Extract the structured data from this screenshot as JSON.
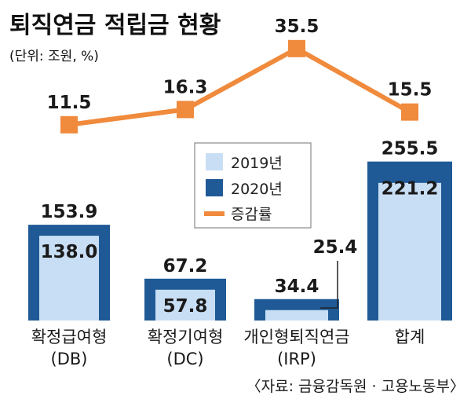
{
  "title": "퇴직연금 적립금 현황",
  "unit": "(단위: 조원, %)",
  "source": "〈자료: 금융감독원 · 고용노동부〉",
  "colors": {
    "y2019": "#c8def4",
    "y2020": "#1f5a96",
    "growth": "#f08a3c"
  },
  "chart_data": {
    "type": "bar",
    "categories": [
      [
        "확정급여형",
        "(DB)"
      ],
      [
        "확정기여형",
        "(DC)"
      ],
      [
        "개인형퇴직연금",
        "(IRP)"
      ],
      [
        "합계"
      ]
    ],
    "series": [
      {
        "name": "2019년",
        "values": [
          138.0,
          57.8,
          null,
          221.2
        ],
        "labels": [
          "138.0",
          "57.8",
          "25.4",
          "221.2"
        ],
        "actual": [
          138.0,
          57.8,
          25.4,
          221.2
        ]
      },
      {
        "name": "2020년",
        "values": [
          153.9,
          67.2,
          34.4,
          255.5
        ],
        "labels": [
          "153.9",
          "67.2",
          "34.4",
          "255.5"
        ]
      },
      {
        "name": "증감률",
        "type": "line",
        "values": [
          11.5,
          16.3,
          35.5,
          15.5
        ],
        "labels": [
          "11.5",
          "16.3",
          "35.5",
          "15.5"
        ]
      }
    ]
  }
}
